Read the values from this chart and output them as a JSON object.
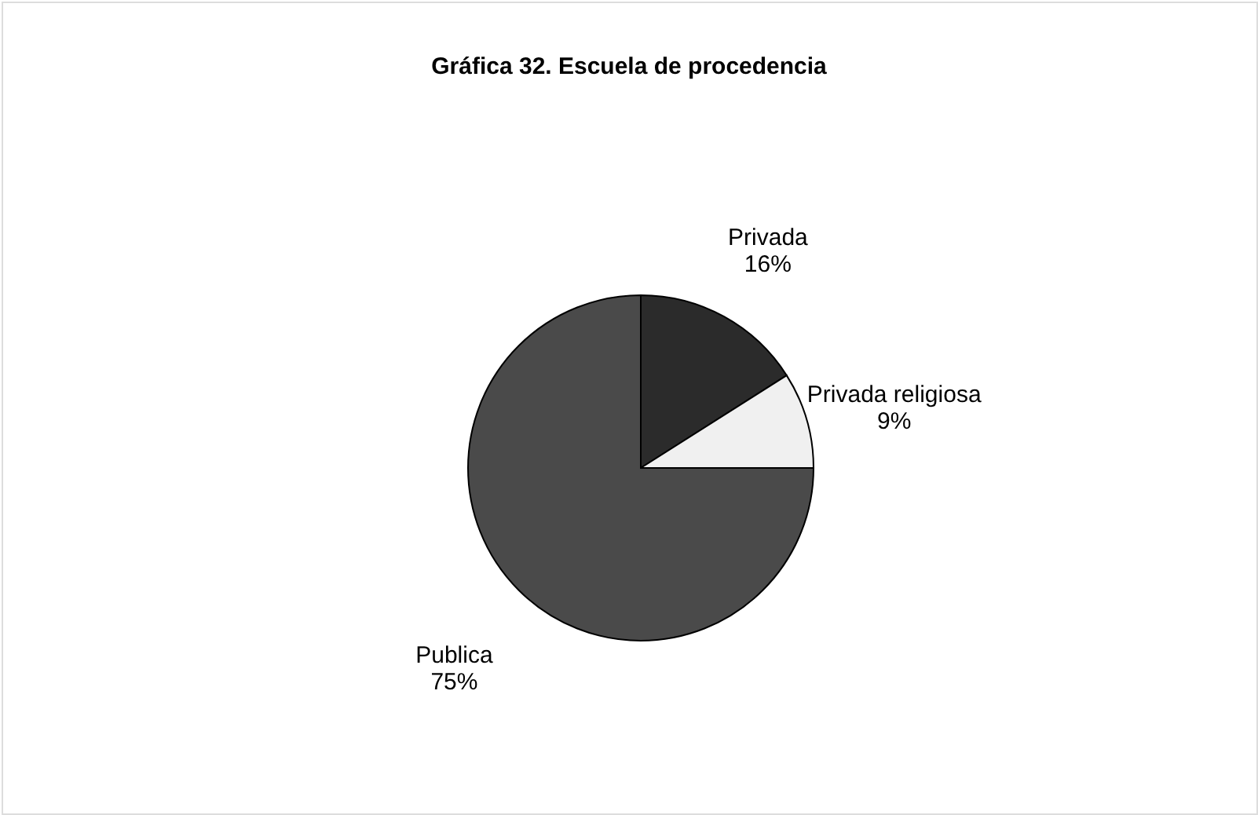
{
  "chart_data": {
    "type": "pie",
    "title": "Gráfica 32. Escuela de procedencia",
    "categories": [
      "Privada",
      "Privada religiosa",
      "Publica"
    ],
    "values": [
      16,
      9,
      75
    ],
    "value_labels": [
      "16%",
      "9%",
      "75%"
    ],
    "colors": [
      "#2b2b2b",
      "#f0f0f0",
      "#4a4a4a"
    ]
  }
}
